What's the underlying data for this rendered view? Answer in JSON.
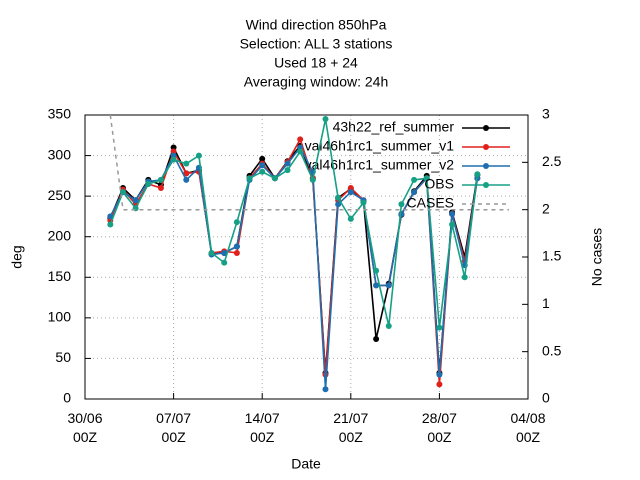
{
  "chart_data": {
    "type": "line",
    "title": [
      "Wind direction 850hPa",
      "Selection: ALL      3 stations",
      "Used  18 + 24",
      "Averaging window: 24h"
    ],
    "x_label": "Date",
    "y_label": "deg",
    "y2_label": "No cases",
    "xlim": [
      0,
      35
    ],
    "xticks": [
      {
        "value": 0,
        "label": "30/06 00Z"
      },
      {
        "value": 7,
        "label": "07/07 00Z"
      },
      {
        "value": 14,
        "label": "14/07 00Z"
      },
      {
        "value": 21,
        "label": "21/07 00Z"
      },
      {
        "value": 28,
        "label": "28/07 00Z"
      },
      {
        "value": 35,
        "label": "04/08 00Z"
      }
    ],
    "ylim": [
      0,
      350
    ],
    "yticks": [
      0,
      50,
      100,
      150,
      200,
      250,
      300,
      350
    ],
    "y2lim": [
      0,
      3
    ],
    "y2ticks": [
      0,
      0.5,
      1,
      1.5,
      2,
      2.5,
      3
    ],
    "grid": true,
    "legend": "top-right",
    "x": [
      2,
      3,
      4,
      5,
      6,
      7,
      8,
      9,
      10,
      11,
      12,
      13,
      14,
      15,
      16,
      17,
      18,
      19,
      20,
      21,
      22,
      23,
      24,
      25,
      26,
      27,
      28,
      29,
      30,
      31
    ],
    "series": [
      {
        "name": "43h22_ref_summer",
        "color": "#000000",
        "values": [
          223,
          260,
          245,
          270,
          264,
          310,
          278,
          282,
          179,
          180,
          188,
          275,
          296,
          272,
          293,
          312,
          272,
          32,
          248,
          259,
          244,
          74,
          142,
          227,
          256,
          275,
          32,
          230,
          175,
          276
        ]
      },
      {
        "name": "val46h1rc1_summer_v1",
        "color": "#e0211b",
        "values": [
          220,
          258,
          240,
          265,
          260,
          305,
          278,
          280,
          180,
          182,
          180,
          272,
          290,
          272,
          292,
          320,
          272,
          30,
          245,
          260,
          245,
          140,
          140,
          228,
          255,
          272,
          18,
          228,
          170,
          272
        ]
      },
      {
        "name": "val46h1rc1_summer_v2",
        "color": "#1f6fb0",
        "values": [
          225,
          255,
          245,
          268,
          270,
          300,
          270,
          285,
          178,
          180,
          188,
          270,
          288,
          272,
          290,
          310,
          280,
          12,
          240,
          255,
          245,
          140,
          140,
          228,
          255,
          272,
          30,
          228,
          165,
          272
        ]
      },
      {
        "name": "OBS",
        "color": "#16a085",
        "values": [
          215,
          255,
          235,
          265,
          270,
          295,
          290,
          300,
          180,
          168,
          218,
          272,
          280,
          272,
          282,
          305,
          270,
          345,
          248,
          222,
          242,
          158,
          90,
          240,
          270,
          272,
          88,
          215,
          150,
          277
        ]
      },
      {
        "name": "CASES",
        "color": "#999999",
        "axis": "y2",
        "dashed": true,
        "x": [
          2,
          3,
          33.5
        ],
        "values": [
          3,
          2,
          2
        ]
      }
    ]
  }
}
